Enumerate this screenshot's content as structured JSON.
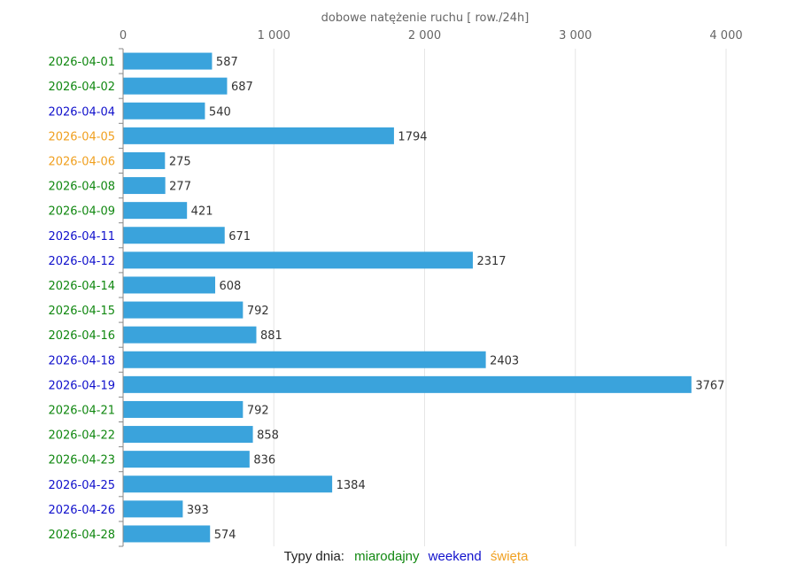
{
  "chart_data": {
    "type": "bar",
    "orientation": "horizontal",
    "title": "dobowe natężenie ruchu [ row./24h]",
    "xlim": [
      0,
      4000
    ],
    "ticks": [
      0,
      1000,
      2000,
      3000,
      4000
    ],
    "tick_labels": [
      "0",
      "1 000",
      "2 000",
      "3 000",
      "4 000"
    ],
    "bar_color": "#3aa3dc",
    "categories": [
      "2026-04-01",
      "2026-04-02",
      "2026-04-04",
      "2026-04-05",
      "2026-04-06",
      "2026-04-08",
      "2026-04-09",
      "2026-04-11",
      "2026-04-12",
      "2026-04-14",
      "2026-04-15",
      "2026-04-16",
      "2026-04-18",
      "2026-04-19",
      "2026-04-21",
      "2026-04-22",
      "2026-04-23",
      "2026-04-25",
      "2026-04-26",
      "2026-04-28"
    ],
    "values": [
      587,
      687,
      540,
      1794,
      275,
      277,
      421,
      671,
      2317,
      608,
      792,
      881,
      2403,
      3767,
      792,
      858,
      836,
      1384,
      393,
      574
    ],
    "day_types": [
      "miarodajny",
      "miarodajny",
      "weekend",
      "swieta",
      "swieta",
      "miarodajny",
      "miarodajny",
      "weekend",
      "weekend",
      "miarodajny",
      "miarodajny",
      "miarodajny",
      "weekend",
      "weekend",
      "miarodajny",
      "miarodajny",
      "miarodajny",
      "weekend",
      "weekend",
      "miarodajny"
    ],
    "type_colors": {
      "miarodajny": "#118811",
      "weekend": "#1111cc",
      "swieta": "#f0a020"
    },
    "legend": {
      "title": "Typy dnia:",
      "items": [
        {
          "key": "miarodajny",
          "label": "miarodajny"
        },
        {
          "key": "weekend",
          "label": "weekend"
        },
        {
          "key": "swieta",
          "label": "święta"
        }
      ]
    }
  }
}
